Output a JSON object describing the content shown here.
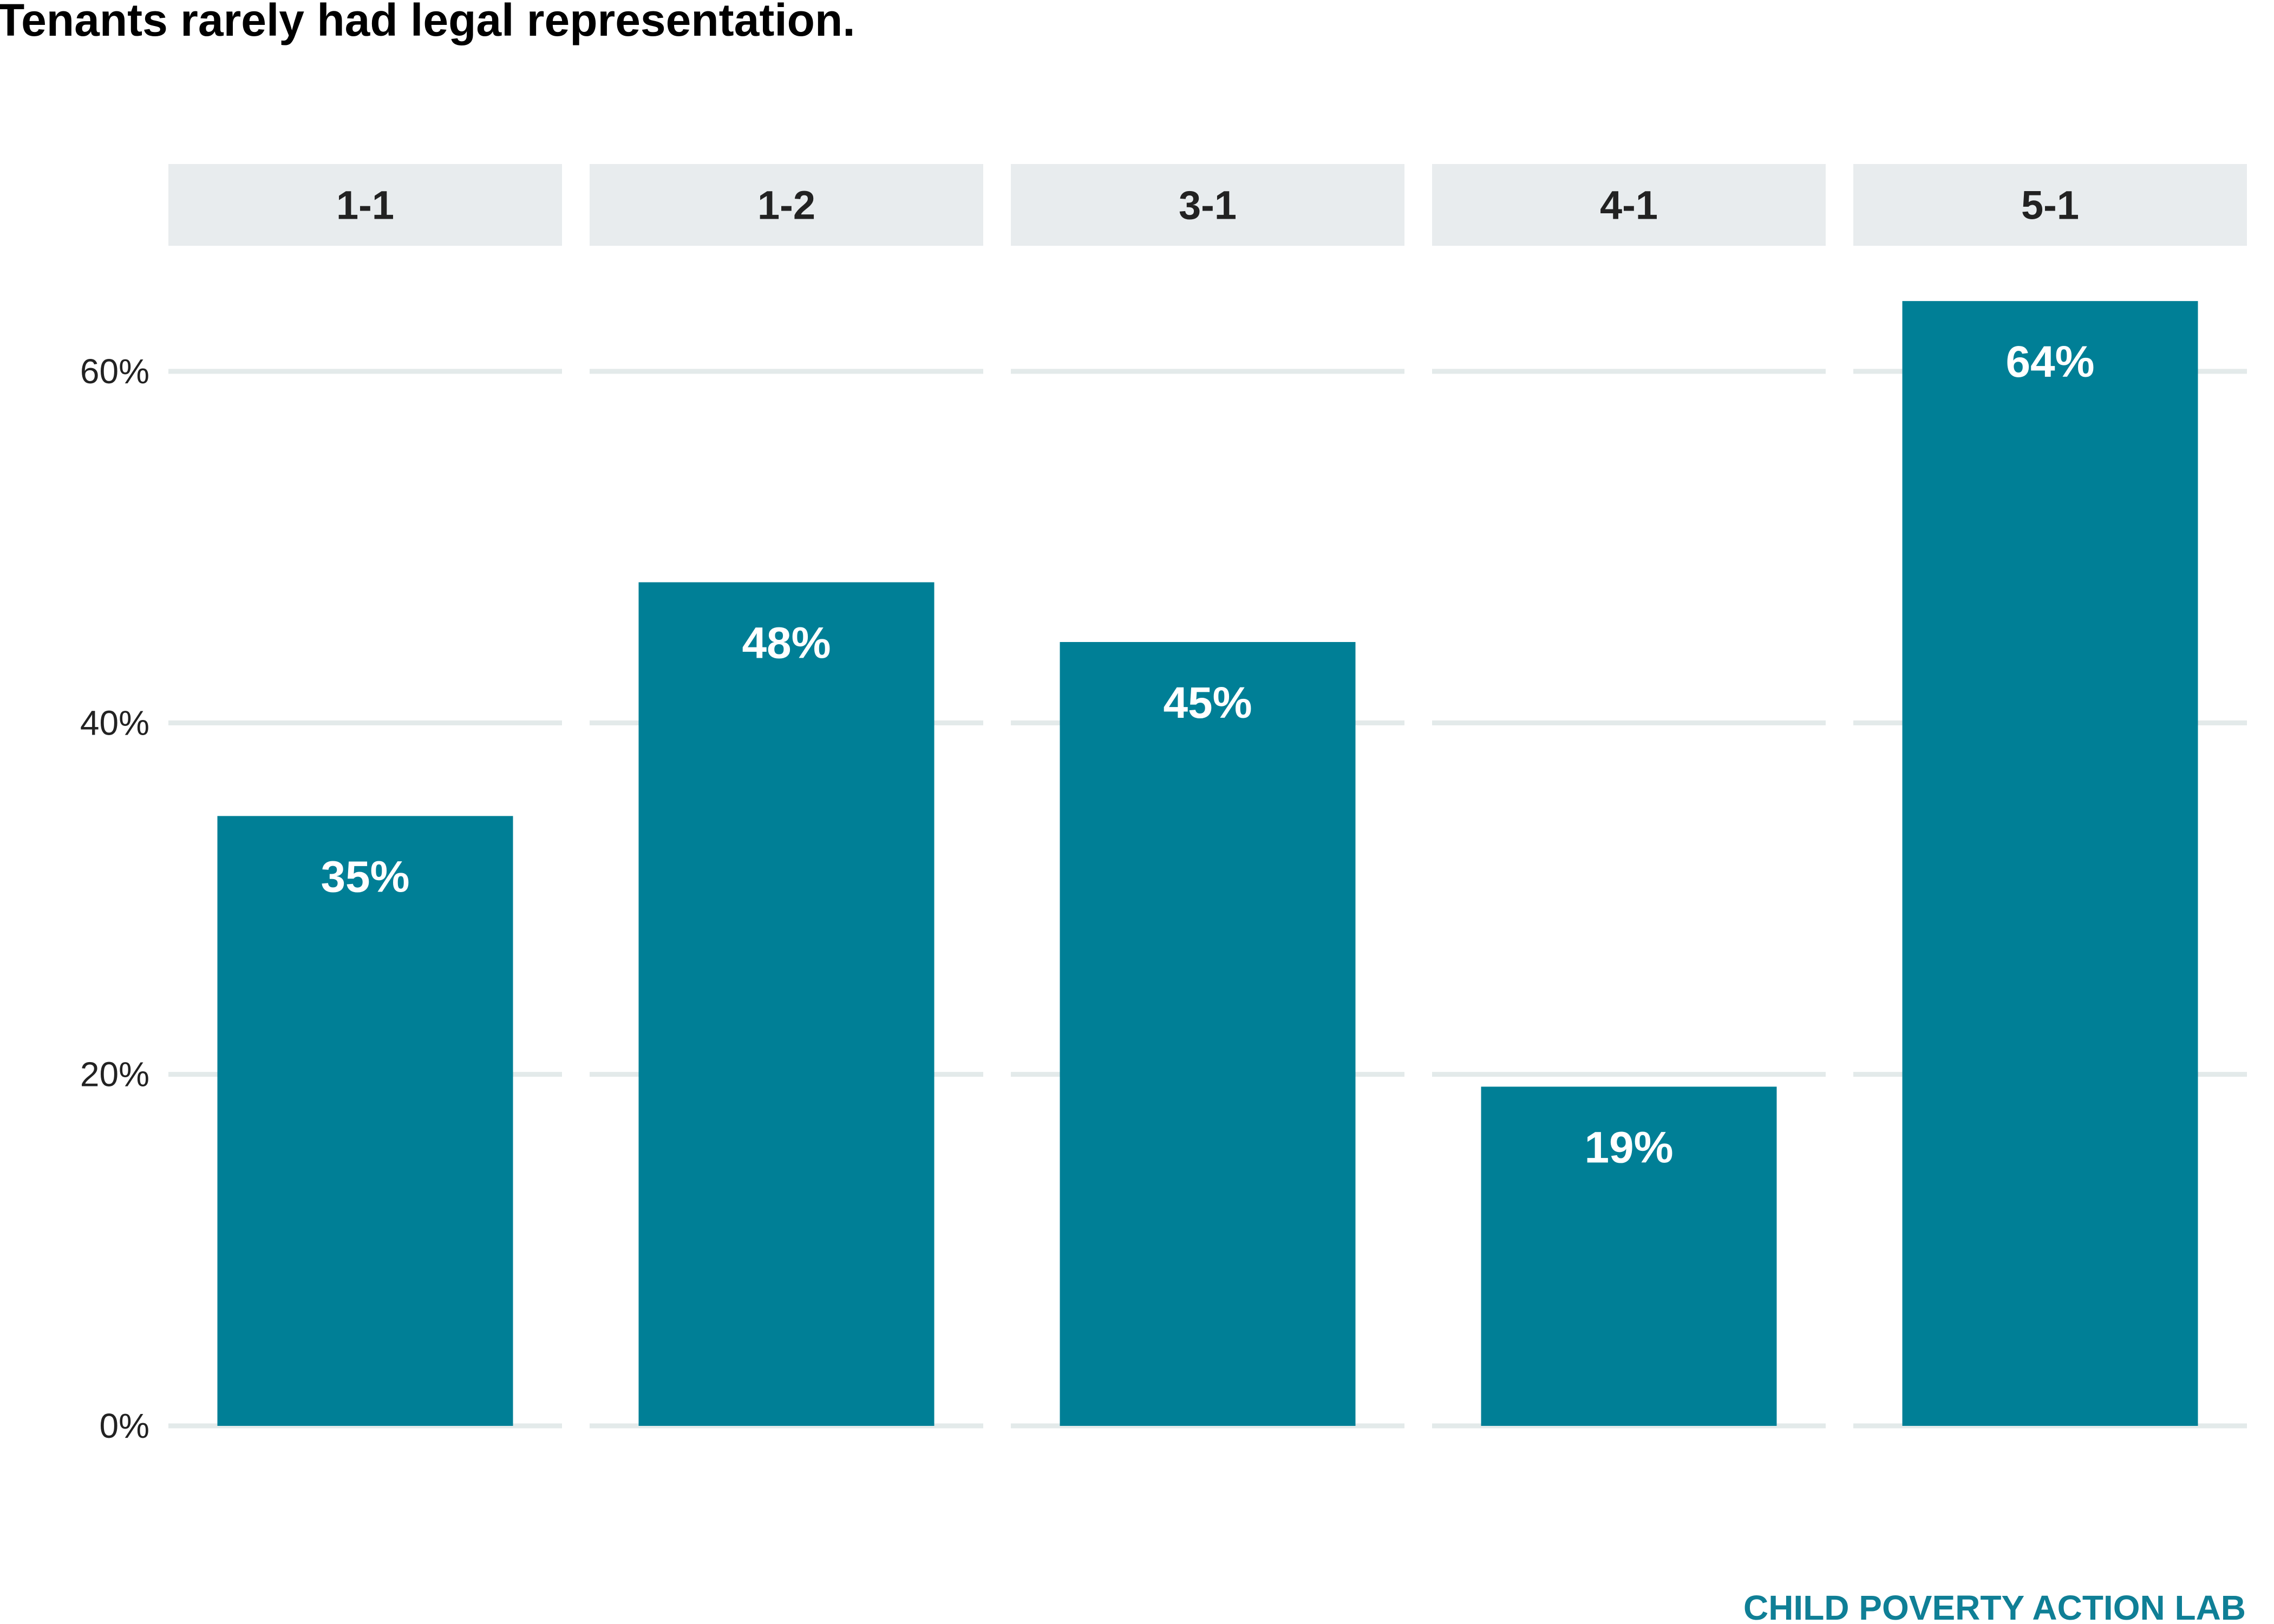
{
  "chart_data": {
    "type": "bar",
    "title": "Tenants rarely had legal representation.",
    "categories": [
      "1-1",
      "1-2",
      "3-1",
      "4-1",
      "5-1"
    ],
    "values": [
      0.347,
      0.48,
      0.446,
      0.193,
      0.64
    ],
    "value_labels": [
      "35%",
      "48%",
      "45%",
      "19%",
      "64%"
    ],
    "ylim": [
      0,
      0.66
    ],
    "yticks": [
      0,
      0.2,
      0.4,
      0.6
    ],
    "ytick_labels": [
      "0%",
      "20%",
      "40%",
      "60%"
    ],
    "xlabel": "",
    "ylabel": "",
    "grid": true,
    "legend": "none",
    "faceted": true
  },
  "caption": "CHILD POVERTY ACTION LAB",
  "colors": {
    "bar": "#007f96",
    "caption": "#0f7f96",
    "strip": "#e8ecee",
    "grid": "#e3eaea"
  }
}
